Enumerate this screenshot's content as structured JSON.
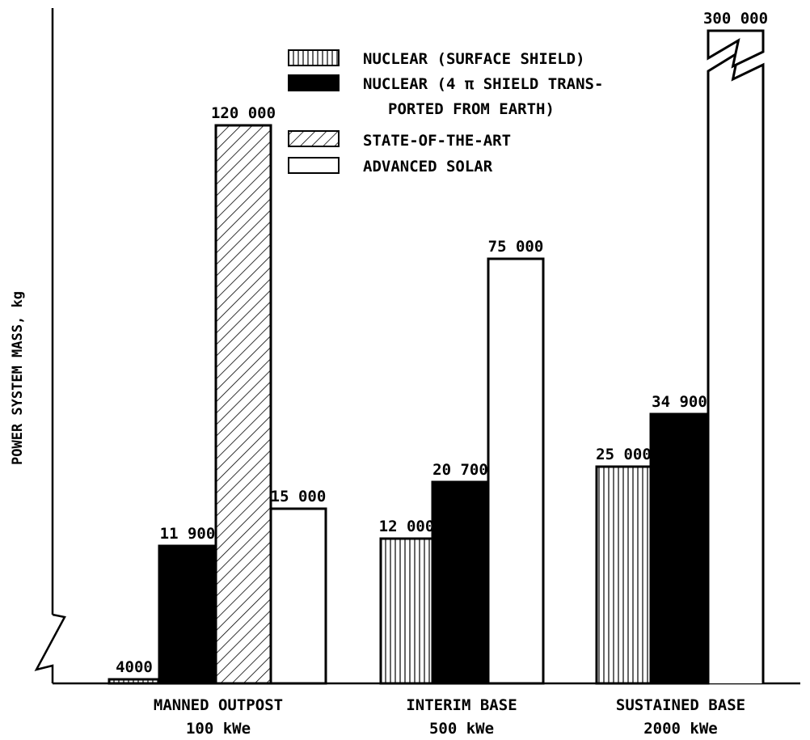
{
  "chart_data": {
    "type": "bar",
    "ylabel": "POWER SYSTEM MASS, kg",
    "categories": [
      {
        "name": "MANNED OUTPOST",
        "power": "100 kWe"
      },
      {
        "name": "INTERIM BASE",
        "power": "500 kWe"
      },
      {
        "name": "SUSTAINED BASE",
        "power": "2000 kWe"
      }
    ],
    "series": [
      {
        "name": "NUCLEAR (SURFACE SHIELD)",
        "pattern": "vertical-hatch",
        "values": [
          4000,
          12000,
          25000
        ],
        "labels": [
          "4000",
          "12 000",
          "25 000"
        ]
      },
      {
        "name_lines": [
          "NUCLEAR (4 π SHIELD TRANS-",
          "PORTED FROM EARTH)"
        ],
        "pattern": "solid-black",
        "values": [
          11900,
          20700,
          34900
        ],
        "labels": [
          "11 900",
          "20 700",
          "34 900"
        ]
      },
      {
        "name": "STATE-OF-THE-ART",
        "pattern": "diagonal-hatch",
        "values": [
          120000,
          null,
          null
        ],
        "labels": [
          "120 000",
          "",
          ""
        ]
      },
      {
        "name": "ADVANCED SOLAR",
        "pattern": "open",
        "values": [
          15000,
          75000,
          300000
        ],
        "labels": [
          "15 000",
          "75 000",
          "300 000"
        ],
        "broken": [
          false,
          false,
          true
        ]
      }
    ],
    "y_axis_broken": true,
    "grid": false,
    "legend_position": "top-center",
    "colors": {
      "ink": "#000000",
      "background": "#ffffff"
    }
  }
}
